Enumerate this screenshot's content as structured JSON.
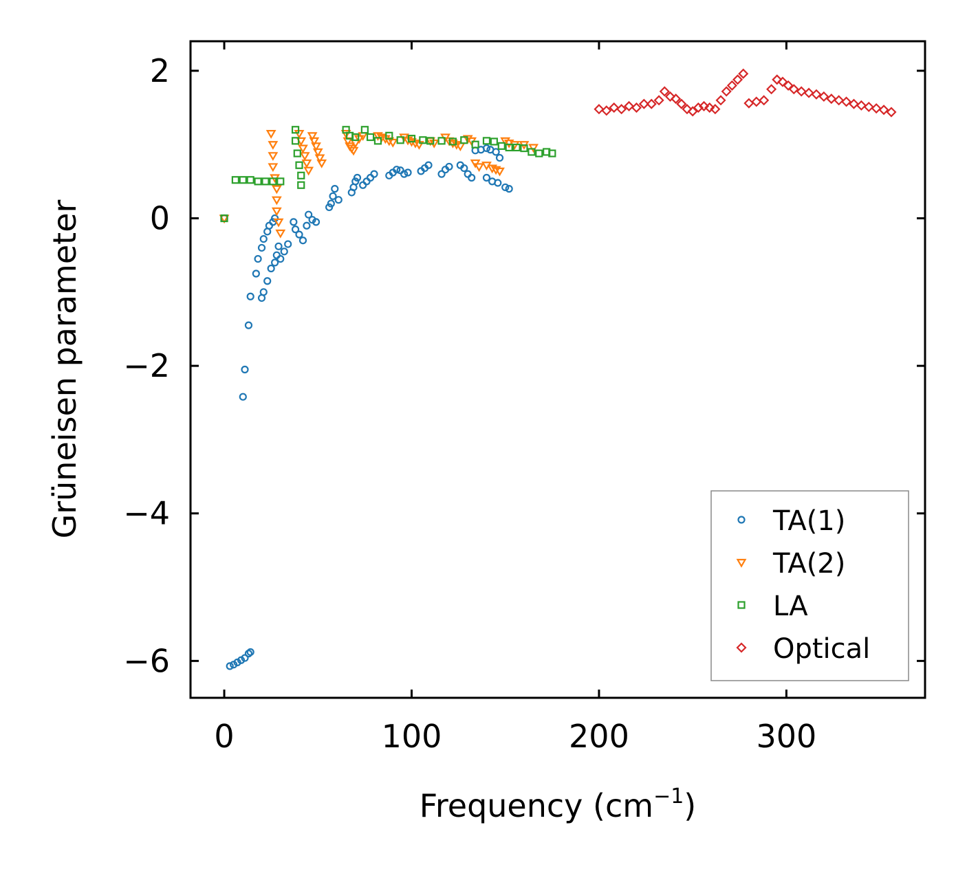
{
  "chart_data": {
    "type": "scatter",
    "xlabel": "Frequency (cm",
    "xlabel_sup": "−1",
    "xlabel_close": ")",
    "ylabel": "Grüneisen parameter",
    "xlim": [
      -18,
      374
    ],
    "ylim": [
      -6.5,
      2.4
    ],
    "xticks": [
      0,
      100,
      200,
      300
    ],
    "xtick_labels": [
      "0",
      "100",
      "200",
      "300"
    ],
    "yticks": [
      -6,
      -4,
      -2,
      0,
      2
    ],
    "ytick_labels": [
      "−6",
      "−4",
      "−2",
      "0",
      "2"
    ],
    "legend_position": "lower-right",
    "series": [
      {
        "name": "TA(1)",
        "marker": "circle",
        "color": "#1f77b4",
        "points": [
          [
            0,
            0
          ],
          [
            3,
            -6.07
          ],
          [
            5,
            -6.05
          ],
          [
            7,
            -6.02
          ],
          [
            9,
            -5.99
          ],
          [
            11,
            -5.96
          ],
          [
            13,
            -5.9
          ],
          [
            14,
            -5.88
          ],
          [
            10,
            -2.42
          ],
          [
            11,
            -2.05
          ],
          [
            13,
            -1.45
          ],
          [
            14,
            -1.06
          ],
          [
            17,
            -0.75
          ],
          [
            18,
            -0.55
          ],
          [
            20,
            -0.4
          ],
          [
            21,
            -0.28
          ],
          [
            23,
            -0.18
          ],
          [
            24,
            -0.1
          ],
          [
            26,
            -0.05
          ],
          [
            27,
            0.0
          ],
          [
            20,
            -1.08
          ],
          [
            21,
            -1.0
          ],
          [
            23,
            -0.85
          ],
          [
            25,
            -0.68
          ],
          [
            27,
            -0.6
          ],
          [
            28,
            -0.5
          ],
          [
            29,
            -0.38
          ],
          [
            30,
            -0.55
          ],
          [
            32,
            -0.45
          ],
          [
            34,
            -0.35
          ],
          [
            37,
            -0.05
          ],
          [
            38,
            -0.15
          ],
          [
            40,
            -0.22
          ],
          [
            42,
            -0.3
          ],
          [
            44,
            -0.1
          ],
          [
            45,
            0.05
          ],
          [
            47,
            -0.02
          ],
          [
            49,
            -0.05
          ],
          [
            56,
            0.15
          ],
          [
            57,
            0.2
          ],
          [
            58,
            0.3
          ],
          [
            59,
            0.4
          ],
          [
            61,
            0.25
          ],
          [
            68,
            0.35
          ],
          [
            69,
            0.42
          ],
          [
            70,
            0.5
          ],
          [
            71,
            0.55
          ],
          [
            74,
            0.45
          ],
          [
            76,
            0.5
          ],
          [
            78,
            0.55
          ],
          [
            80,
            0.6
          ],
          [
            88,
            0.58
          ],
          [
            90,
            0.62
          ],
          [
            92,
            0.66
          ],
          [
            94,
            0.65
          ],
          [
            96,
            0.6
          ],
          [
            98,
            0.62
          ],
          [
            105,
            0.64
          ],
          [
            107,
            0.68
          ],
          [
            109,
            0.72
          ],
          [
            116,
            0.6
          ],
          [
            118,
            0.66
          ],
          [
            120,
            0.7
          ],
          [
            126,
            0.72
          ],
          [
            128,
            0.68
          ],
          [
            130,
            0.6
          ],
          [
            132,
            0.55
          ],
          [
            134,
            0.92
          ],
          [
            137,
            0.93
          ],
          [
            140,
            0.95
          ],
          [
            142,
            0.93
          ],
          [
            145,
            0.9
          ],
          [
            147,
            0.82
          ],
          [
            140,
            0.55
          ],
          [
            143,
            0.5
          ],
          [
            146,
            0.48
          ],
          [
            150,
            0.42
          ],
          [
            152,
            0.4
          ]
        ]
      },
      {
        "name": "TA(2)",
        "marker": "triangle-down",
        "color": "#ff7f0e",
        "points": [
          [
            0,
            0
          ],
          [
            25,
            1.15
          ],
          [
            26,
            1.0
          ],
          [
            26,
            0.85
          ],
          [
            26,
            0.7
          ],
          [
            27,
            0.55
          ],
          [
            28,
            0.4
          ],
          [
            28,
            0.25
          ],
          [
            28,
            0.1
          ],
          [
            29,
            -0.05
          ],
          [
            30,
            -0.2
          ],
          [
            40,
            1.15
          ],
          [
            41,
            1.05
          ],
          [
            42,
            0.95
          ],
          [
            43,
            0.85
          ],
          [
            44,
            0.75
          ],
          [
            45,
            0.65
          ],
          [
            47,
            1.12
          ],
          [
            48,
            1.05
          ],
          [
            49,
            0.98
          ],
          [
            50,
            0.9
          ],
          [
            51,
            0.82
          ],
          [
            52,
            0.75
          ],
          [
            65,
            1.15
          ],
          [
            66,
            1.05
          ],
          [
            67,
            0.98
          ],
          [
            68,
            0.95
          ],
          [
            69,
            0.92
          ],
          [
            70,
            1.02
          ],
          [
            72,
            1.08
          ],
          [
            74,
            1.12
          ],
          [
            82,
            1.12
          ],
          [
            84,
            1.1
          ],
          [
            86,
            1.08
          ],
          [
            88,
            1.05
          ],
          [
            90,
            1.03
          ],
          [
            96,
            1.1
          ],
          [
            98,
            1.06
          ],
          [
            100,
            1.04
          ],
          [
            102,
            1.02
          ],
          [
            104,
            1.0
          ],
          [
            110,
            1.05
          ],
          [
            112,
            1.02
          ],
          [
            118,
            1.1
          ],
          [
            120,
            1.05
          ],
          [
            122,
            1.02
          ],
          [
            124,
            1.0
          ],
          [
            126,
            0.98
          ],
          [
            130,
            1.08
          ],
          [
            132,
            1.05
          ],
          [
            134,
            0.75
          ],
          [
            136,
            0.7
          ],
          [
            140,
            0.72
          ],
          [
            143,
            0.68
          ],
          [
            145,
            0.66
          ],
          [
            147,
            0.64
          ],
          [
            150,
            1.05
          ],
          [
            152,
            1.02
          ],
          [
            155,
            1.0
          ],
          [
            160,
            1.0
          ],
          [
            165,
            0.96
          ]
        ]
      },
      {
        "name": "LA",
        "marker": "square",
        "color": "#2ca02c",
        "points": [
          [
            0,
            0
          ],
          [
            6,
            0.52
          ],
          [
            10,
            0.52
          ],
          [
            14,
            0.52
          ],
          [
            18,
            0.5
          ],
          [
            22,
            0.5
          ],
          [
            26,
            0.5
          ],
          [
            30,
            0.5
          ],
          [
            38,
            1.2
          ],
          [
            38,
            1.05
          ],
          [
            39,
            0.88
          ],
          [
            40,
            0.72
          ],
          [
            41,
            0.58
          ],
          [
            41,
            0.45
          ],
          [
            65,
            1.2
          ],
          [
            67,
            1.12
          ],
          [
            70,
            1.1
          ],
          [
            75,
            1.2
          ],
          [
            78,
            1.1
          ],
          [
            82,
            1.05
          ],
          [
            88,
            1.12
          ],
          [
            94,
            1.06
          ],
          [
            100,
            1.08
          ],
          [
            106,
            1.06
          ],
          [
            110,
            1.05
          ],
          [
            116,
            1.05
          ],
          [
            122,
            1.04
          ],
          [
            128,
            1.06
          ],
          [
            134,
            1.0
          ],
          [
            140,
            1.05
          ],
          [
            144,
            1.04
          ],
          [
            148,
            0.98
          ],
          [
            152,
            0.96
          ],
          [
            156,
            0.96
          ],
          [
            160,
            0.95
          ],
          [
            164,
            0.9
          ],
          [
            168,
            0.88
          ],
          [
            172,
            0.9
          ],
          [
            175,
            0.88
          ]
        ]
      },
      {
        "name": "Optical",
        "marker": "diamond",
        "color": "#d62728",
        "points": [
          [
            200,
            1.48
          ],
          [
            204,
            1.46
          ],
          [
            208,
            1.5
          ],
          [
            212,
            1.48
          ],
          [
            216,
            1.52
          ],
          [
            220,
            1.5
          ],
          [
            224,
            1.55
          ],
          [
            228,
            1.55
          ],
          [
            232,
            1.6
          ],
          [
            235,
            1.72
          ],
          [
            238,
            1.65
          ],
          [
            241,
            1.62
          ],
          [
            244,
            1.55
          ],
          [
            247,
            1.48
          ],
          [
            250,
            1.45
          ],
          [
            253,
            1.5
          ],
          [
            256,
            1.52
          ],
          [
            259,
            1.5
          ],
          [
            262,
            1.48
          ],
          [
            265,
            1.6
          ],
          [
            268,
            1.72
          ],
          [
            271,
            1.8
          ],
          [
            274,
            1.88
          ],
          [
            277,
            1.96
          ],
          [
            280,
            1.56
          ],
          [
            284,
            1.58
          ],
          [
            288,
            1.6
          ],
          [
            292,
            1.75
          ],
          [
            295,
            1.88
          ],
          [
            298,
            1.85
          ],
          [
            301,
            1.8
          ],
          [
            304,
            1.75
          ],
          [
            308,
            1.72
          ],
          [
            312,
            1.7
          ],
          [
            316,
            1.68
          ],
          [
            320,
            1.65
          ],
          [
            324,
            1.62
          ],
          [
            328,
            1.6
          ],
          [
            332,
            1.58
          ],
          [
            336,
            1.55
          ],
          [
            340,
            1.53
          ],
          [
            344,
            1.51
          ],
          [
            348,
            1.49
          ],
          [
            352,
            1.47
          ],
          [
            356,
            1.44
          ]
        ]
      }
    ]
  }
}
